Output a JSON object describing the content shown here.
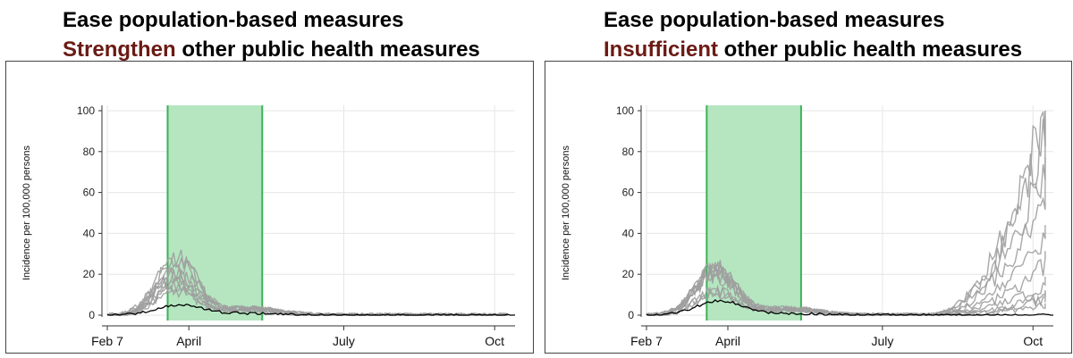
{
  "colors": {
    "accent": "#6b1a14",
    "band_fill": "#b5e6c0",
    "band_edge": "#3cb15a",
    "sims": "#9e9e9e",
    "observed": "#000000",
    "grid": "#e6e6e6"
  },
  "panels": [
    {
      "title_line1": "Ease population-based measures",
      "title_accent": "Strengthen",
      "title_rest": " other public health measures"
    },
    {
      "title_line1": "Ease population-based measures",
      "title_accent": "Insufficient",
      "title_rest": " other public health measures"
    }
  ],
  "chart_data": [
    {
      "type": "line",
      "ylabel": "Incidence per 100,000 persons",
      "xlabel": "",
      "y_ticks": [
        0,
        20,
        40,
        60,
        80,
        100
      ],
      "ylim": [
        0,
        100
      ],
      "x_ticks": [
        {
          "label": "Feb 7",
          "x": 0
        },
        {
          "label": "April",
          "x": 0.2
        },
        {
          "label": "July",
          "x": 0.58
        },
        {
          "label": "Oct",
          "x": 0.95
        }
      ],
      "xlim": [
        0,
        1
      ],
      "shaded_interval": [
        0.148,
        0.38
      ],
      "grid": true,
      "series_note": "grey: simulated trajectories; black: baseline",
      "observed_peak": 5,
      "sim_peak": 30,
      "late_resurgence": false
    },
    {
      "type": "line",
      "ylabel": "Incidence per 100,000 persons",
      "xlabel": "",
      "y_ticks": [
        0,
        20,
        40,
        60,
        80,
        100
      ],
      "ylim": [
        0,
        100
      ],
      "x_ticks": [
        {
          "label": "Feb 7",
          "x": 0
        },
        {
          "label": "April",
          "x": 0.2
        },
        {
          "label": "July",
          "x": 0.58
        },
        {
          "label": "Oct",
          "x": 0.95
        }
      ],
      "xlim": [
        0,
        1
      ],
      "shaded_interval": [
        0.148,
        0.38
      ],
      "grid": true,
      "series_note": "grey: simulated trajectories; black: baseline",
      "observed_peak": 7,
      "sim_peak": 25,
      "late_resurgence": true,
      "resurgence_end_values": [
        100,
        90,
        75,
        60,
        40,
        25,
        15,
        10,
        8,
        5
      ]
    }
  ]
}
